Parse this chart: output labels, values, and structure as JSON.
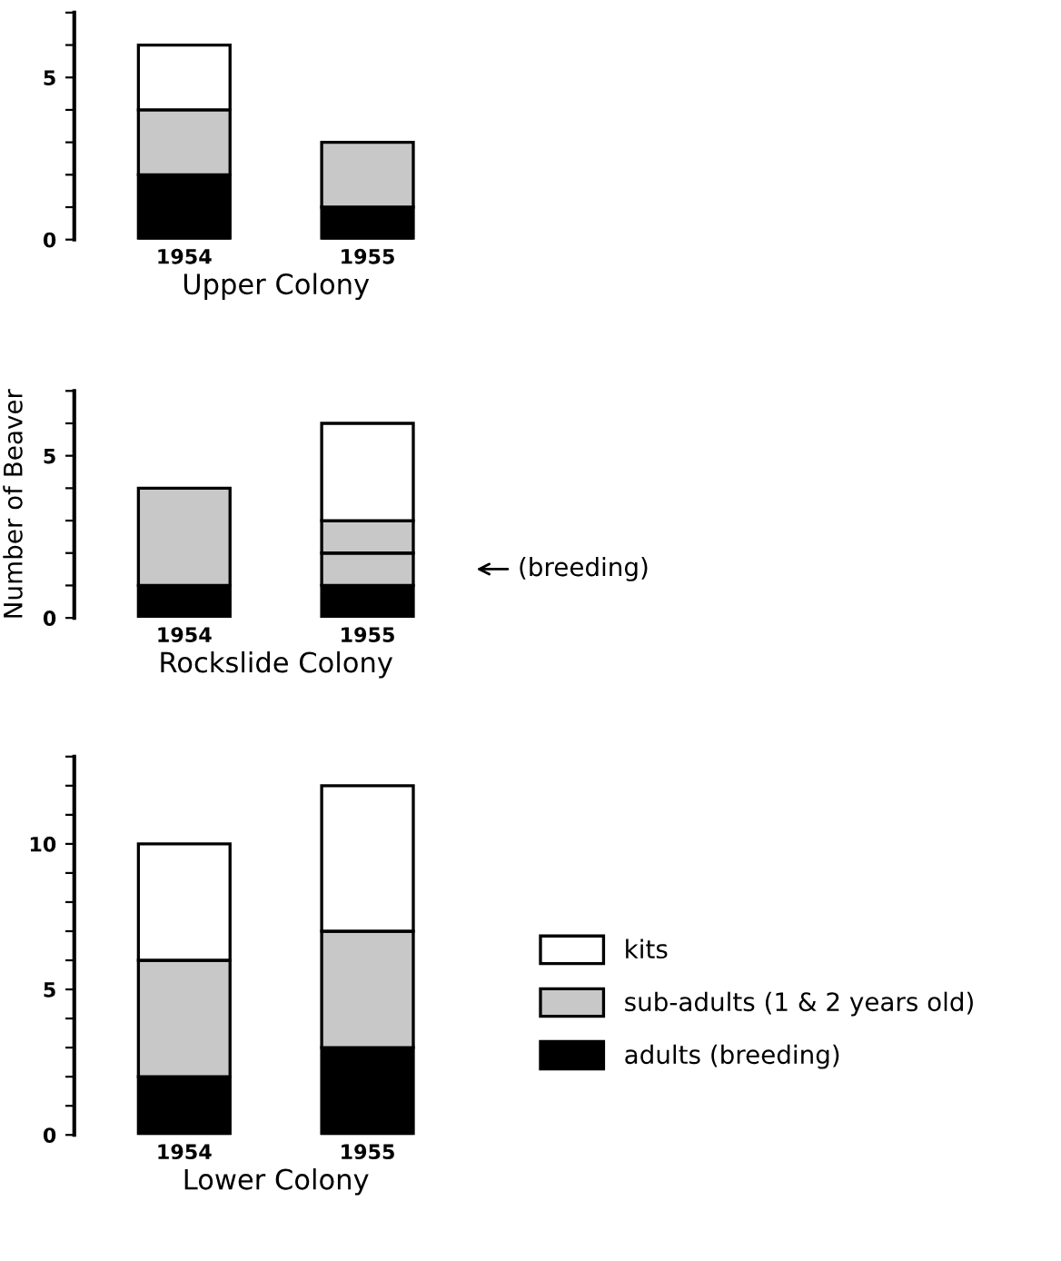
{
  "chart_data": [
    {
      "type": "bar",
      "stacked": true,
      "xlabel": "Upper Colony",
      "categories": [
        "1954",
        "1955"
      ],
      "ylim": [
        0,
        7
      ],
      "yticks": [
        0,
        {
          "value": 1,
          "label": null
        },
        {
          "value": 2,
          "label": null
        },
        {
          "value": 3,
          "label": null
        },
        {
          "value": 4,
          "label": null
        },
        5,
        {
          "value": 6,
          "label": null
        },
        {
          "value": 7,
          "label": null
        }
      ],
      "grid": false,
      "legend": false,
      "series": [
        {
          "color": "#000000",
          "values": [
            2,
            1
          ]
        },
        {
          "color": "#c8c8c8",
          "values": [
            2,
            2
          ]
        },
        {
          "color": "#ffffff",
          "values": [
            2,
            0
          ]
        }
      ]
    },
    {
      "type": "bar",
      "stacked": true,
      "xlabel": "Rockslide Colony",
      "ylabel": "Number of Beaver",
      "categories": [
        "1954",
        "1955"
      ],
      "ylim": [
        0,
        7
      ],
      "yticks": [
        0,
        {
          "value": 1,
          "label": null
        },
        {
          "value": 2,
          "label": null
        },
        {
          "value": 3,
          "label": null
        },
        {
          "value": 4,
          "label": null
        },
        5,
        {
          "value": 6,
          "label": null
        },
        {
          "value": 7,
          "label": null
        }
      ],
      "grid": false,
      "legend": false,
      "annotations": [
        "(breeding)"
      ],
      "series": [
        {
          "color": "#000000",
          "values": [
            1,
            1
          ]
        },
        {
          "color": "#c8c8c8",
          "values": [
            0,
            1
          ]
        },
        {
          "color": "#c8c8c8",
          "values": [
            3,
            1
          ]
        },
        {
          "color": "#ffffff",
          "values": [
            0,
            3
          ]
        }
      ]
    },
    {
      "type": "bar",
      "stacked": true,
      "xlabel": "Lower Colony",
      "categories": [
        "1954",
        "1955"
      ],
      "ylim": [
        0,
        13
      ],
      "yticks": [
        0,
        {
          "value": 1,
          "label": null
        },
        {
          "value": 2,
          "label": null
        },
        {
          "value": 3,
          "label": null
        },
        {
          "value": 4,
          "label": null
        },
        5,
        {
          "value": 6,
          "label": null
        },
        {
          "value": 7,
          "label": null
        },
        {
          "value": 8,
          "label": null
        },
        {
          "value": 9,
          "label": null
        },
        10,
        {
          "value": 11,
          "label": null
        },
        {
          "value": 12,
          "label": null
        },
        {
          "value": 13,
          "label": null
        }
      ],
      "grid": false,
      "legend": "right",
      "series": [
        {
          "name": "adults (breeding)",
          "color": "#000000",
          "values": [
            2,
            3
          ]
        },
        {
          "name": "sub-adults (1 & 2 years old)",
          "color": "#c8c8c8",
          "values": [
            4,
            4
          ]
        },
        {
          "name": "kits",
          "color": "#ffffff",
          "values": [
            4,
            5
          ]
        }
      ]
    }
  ]
}
